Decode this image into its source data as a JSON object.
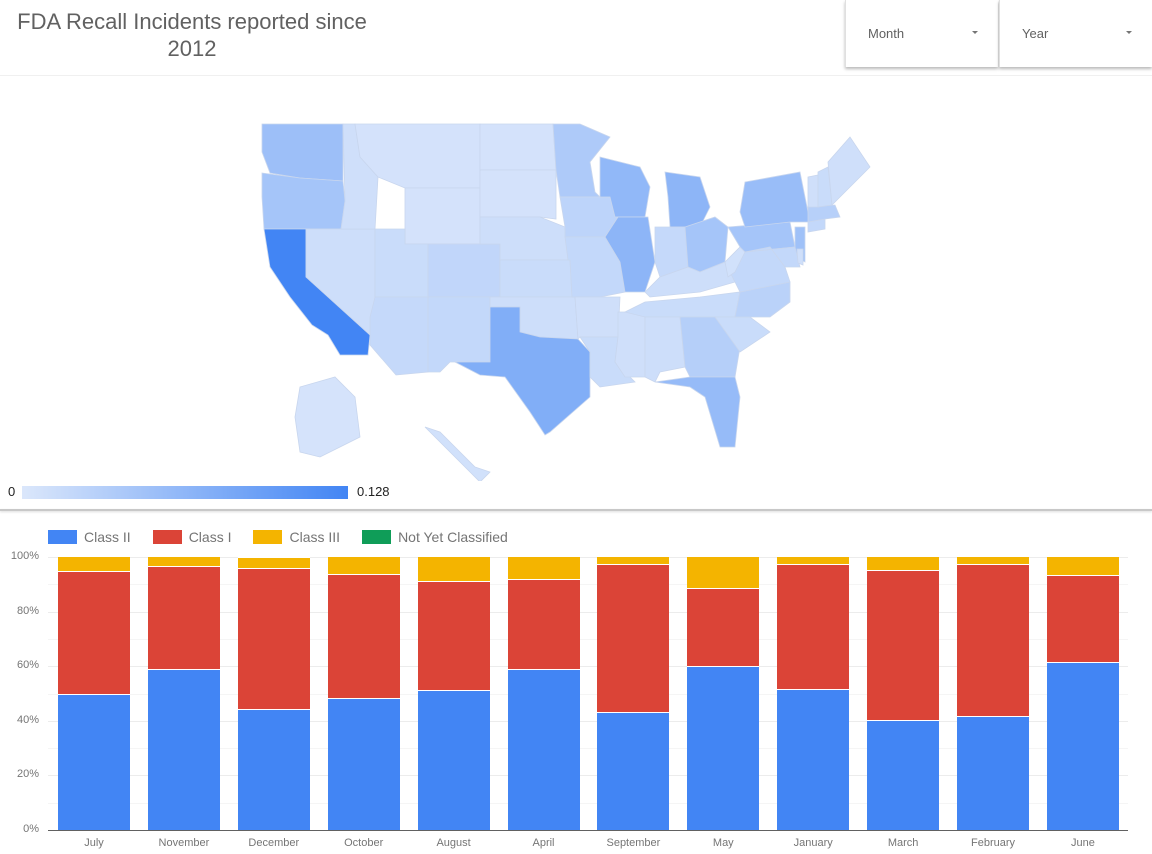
{
  "header": {
    "title": "FDA Recall Incidents reported since 2012",
    "filters": [
      {
        "label": "Month",
        "icon": "caret-down-icon"
      },
      {
        "label": "Year",
        "icon": "caret-down-icon"
      }
    ]
  },
  "map": {
    "type": "choropleth",
    "region": "United States",
    "scale_min": "0",
    "scale_max": "0.128",
    "color_low": "#dbe7fb",
    "color_high": "#4285f4",
    "state_intensity": {
      "CA": 0.128,
      "TX": 0.075,
      "IL": 0.065,
      "MI": 0.065,
      "WI": 0.062,
      "FL": 0.058,
      "NY": 0.055,
      "WA": 0.052,
      "OR": 0.045,
      "NJ": 0.05,
      "PA": 0.045,
      "OH": 0.045,
      "MN": 0.038,
      "GA": 0.032,
      "NC": 0.028,
      "IA": 0.025,
      "MA": 0.03,
      "CO": 0.022,
      "NM": 0.02,
      "MO": 0.02,
      "AZ": 0.018,
      "UT": 0.015,
      "NE": 0.012,
      "KS": 0.015,
      "VA": 0.02,
      "IN": 0.018,
      "TN": 0.015,
      "AL": 0.012,
      "SC": 0.015,
      "KY": 0.012,
      "MS": 0.01,
      "LA": 0.015,
      "AR": 0.01,
      "OK": 0.012,
      "NV": 0.012,
      "ID": 0.01,
      "MT": 0.006,
      "WY": 0.006,
      "ND": 0.006,
      "SD": 0.006,
      "ME": 0.01,
      "NH": 0.015,
      "VT": 0.01,
      "CT": 0.02,
      "MD": 0.02,
      "WV": 0.008,
      "DE": 0.01,
      "AK": 0.005,
      "HI": 0.008
    }
  },
  "chart_data": {
    "type": "bar",
    "stacked": "percent",
    "title": "",
    "xlabel": "",
    "ylabel": "",
    "ylim": [
      0,
      100
    ],
    "y_ticks": [
      "0%",
      "20%",
      "40%",
      "60%",
      "80%",
      "100%"
    ],
    "grid": true,
    "legend_position": "top",
    "categories": [
      "July",
      "November",
      "December",
      "October",
      "August",
      "April",
      "September",
      "May",
      "January",
      "March",
      "February",
      "June"
    ],
    "series": [
      {
        "name": "Class II",
        "color": "#4285f4",
        "values": [
          49.5,
          58.6,
          44.0,
          48.0,
          51.0,
          58.6,
          43.0,
          59.7,
          51.3,
          40.0,
          41.4,
          61.2
        ]
      },
      {
        "name": "Class I",
        "color": "#db4437",
        "values": [
          45.0,
          37.7,
          51.7,
          45.4,
          39.8,
          33.0,
          54.0,
          28.6,
          45.7,
          55.0,
          55.6,
          31.8
        ]
      },
      {
        "name": "Class III",
        "color": "#f4b400",
        "values": [
          5.5,
          3.7,
          4.0,
          6.6,
          9.2,
          8.4,
          3.0,
          11.7,
          3.0,
          5.0,
          3.0,
          7.0
        ]
      },
      {
        "name": "Not Yet Classified",
        "color": "#0f9d58",
        "values": [
          0,
          0,
          0.3,
          0,
          0,
          0,
          0,
          0,
          0,
          0,
          0,
          0
        ]
      }
    ]
  }
}
